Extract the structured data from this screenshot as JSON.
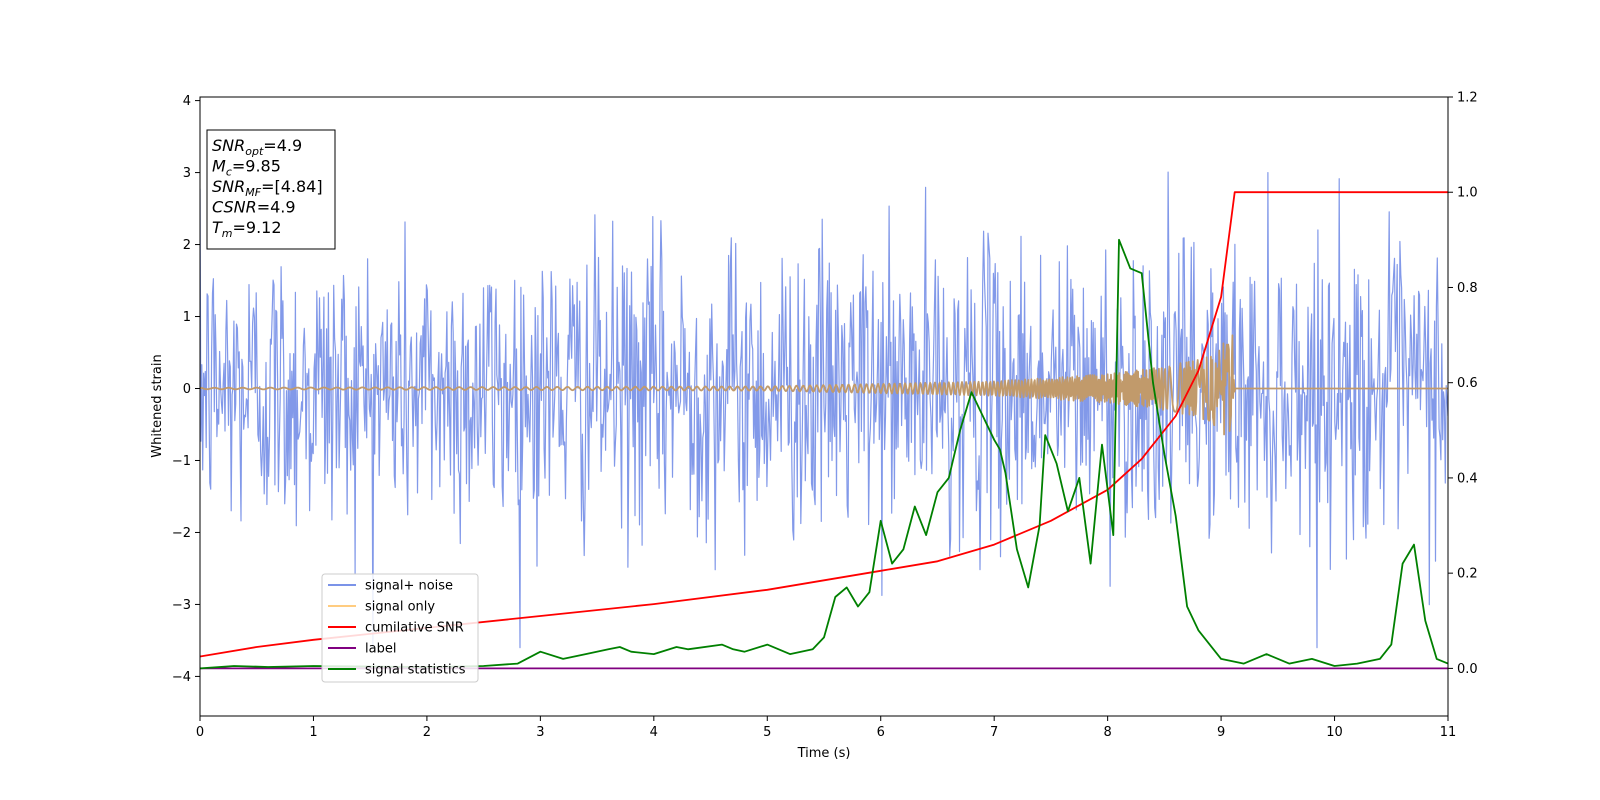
{
  "chart_data": {
    "type": "line",
    "xlabel": "Time (s)",
    "ylabel": "Whitened strain",
    "xlim": [
      0,
      11
    ],
    "ylim_left": [
      -4.55,
      4.05
    ],
    "ylim_right": [
      -0.1,
      1.2
    ],
    "x_ticks": [
      0,
      1,
      2,
      3,
      4,
      5,
      6,
      7,
      8,
      9,
      10,
      11
    ],
    "y_ticks_left": [
      -4,
      -3,
      -2,
      -1,
      0,
      1,
      2,
      3,
      4
    ],
    "y_ticks_right": [
      0.0,
      0.2,
      0.4,
      0.6,
      0.8,
      1.0,
      1.2
    ],
    "grid": false,
    "legend_position": "lower-left",
    "annotation": {
      "lines": [
        {
          "sym": "SNR",
          "sub": "opt",
          "val": "=4.9"
        },
        {
          "sym": "M",
          "sub": "c",
          "val": "=9.85"
        },
        {
          "sym": "SNR",
          "sub": "MF",
          "val": "=[4.84]"
        },
        {
          "sym": "CSNR",
          "sub": "",
          "val": "=4.9"
        },
        {
          "sym": "T",
          "sub": "m",
          "val": "=9.12"
        }
      ]
    },
    "series": [
      {
        "name": "signal+ noise",
        "axis": "left",
        "color": "#7b93e8",
        "kind": "noise",
        "amplitude_std": 1.0,
        "x_range": [
          0,
          11
        ]
      },
      {
        "name": "signal only",
        "axis": "left",
        "color": "#c19a6b",
        "kind": "chirp",
        "merger_time": 9.12,
        "envelope": [
          [
            0,
            0.01
          ],
          [
            5,
            0.03
          ],
          [
            7,
            0.1
          ],
          [
            8,
            0.2
          ],
          [
            8.5,
            0.3
          ],
          [
            8.9,
            0.45
          ],
          [
            9.1,
            0.75
          ],
          [
            9.12,
            0.0
          ],
          [
            11,
            0.0
          ]
        ]
      },
      {
        "name": "cumilative SNR",
        "axis": "right",
        "color": "#ff0000",
        "x": [
          0,
          0.5,
          1,
          2,
          3,
          4,
          5,
          6,
          6.5,
          7,
          7.5,
          8,
          8.3,
          8.6,
          8.8,
          9.0,
          9.12,
          11
        ],
        "values": [
          0.025,
          0.045,
          0.06,
          0.085,
          0.11,
          0.135,
          0.165,
          0.205,
          0.225,
          0.26,
          0.31,
          0.375,
          0.44,
          0.53,
          0.625,
          0.78,
          1.0,
          1.0
        ]
      },
      {
        "name": "label",
        "axis": "right",
        "color": "#800080",
        "x": [
          0,
          11
        ],
        "values": [
          0.0,
          0.0
        ]
      },
      {
        "name": "signal statistics",
        "axis": "right",
        "color": "#008000",
        "x": [
          0,
          0.3,
          0.6,
          1,
          1.5,
          2,
          2.5,
          2.8,
          3.0,
          3.2,
          3.4,
          3.6,
          3.7,
          3.8,
          4.0,
          4.2,
          4.3,
          4.6,
          4.7,
          4.8,
          5.0,
          5.2,
          5.4,
          5.5,
          5.6,
          5.7,
          5.8,
          5.9,
          6.0,
          6.1,
          6.2,
          6.3,
          6.4,
          6.5,
          6.6,
          6.7,
          6.8,
          6.9,
          7.0,
          7.05,
          7.1,
          7.2,
          7.3,
          7.4,
          7.45,
          7.55,
          7.65,
          7.75,
          7.85,
          7.95,
          8.05,
          8.1,
          8.2,
          8.3,
          8.4,
          8.5,
          8.6,
          8.7,
          8.8,
          8.9,
          9.0,
          9.2,
          9.4,
          9.6,
          9.8,
          10.0,
          10.2,
          10.4,
          10.5,
          10.6,
          10.7,
          10.8,
          10.9,
          11.0
        ],
        "values": [
          0.0,
          0.005,
          0.003,
          0.005,
          0.004,
          0.003,
          0.005,
          0.01,
          0.035,
          0.02,
          0.03,
          0.04,
          0.045,
          0.035,
          0.03,
          0.045,
          0.04,
          0.05,
          0.04,
          0.035,
          0.05,
          0.03,
          0.04,
          0.065,
          0.15,
          0.17,
          0.13,
          0.16,
          0.31,
          0.22,
          0.25,
          0.34,
          0.28,
          0.37,
          0.4,
          0.5,
          0.58,
          0.53,
          0.48,
          0.46,
          0.41,
          0.25,
          0.17,
          0.3,
          0.49,
          0.43,
          0.33,
          0.4,
          0.22,
          0.47,
          0.28,
          0.9,
          0.84,
          0.83,
          0.6,
          0.45,
          0.32,
          0.13,
          0.08,
          0.05,
          0.02,
          0.01,
          0.03,
          0.01,
          0.02,
          0.005,
          0.01,
          0.02,
          0.05,
          0.22,
          0.26,
          0.1,
          0.02,
          0.01
        ]
      }
    ]
  }
}
